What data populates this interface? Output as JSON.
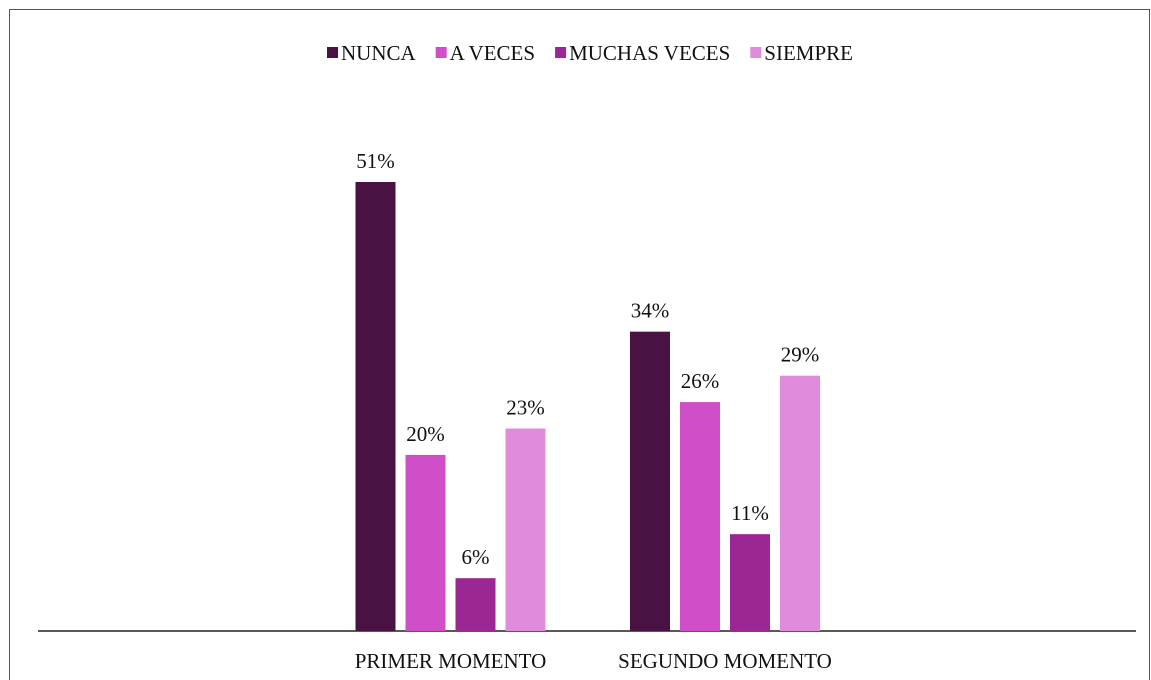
{
  "chart_data": {
    "type": "bar",
    "categories": [
      "PRIMER MOMENTO",
      "SEGUNDO MOMENTO"
    ],
    "series": [
      {
        "name": "NUNCA",
        "color": "#4a1242",
        "values": [
          51,
          34
        ],
        "value_labels": [
          "51%",
          "34%"
        ]
      },
      {
        "name": "A VECES",
        "color": "#d04fc8",
        "values": [
          20,
          26
        ],
        "value_labels": [
          "20%",
          "26%"
        ]
      },
      {
        "name": "MUCHAS VECES",
        "color": "#9b2794",
        "values": [
          6,
          11
        ],
        "value_labels": [
          "6%",
          "11%"
        ]
      },
      {
        "name": "SIEMPRE",
        "color": "#e08bdc",
        "values": [
          23,
          29
        ],
        "value_labels": [
          "23%",
          "29%"
        ]
      }
    ],
    "legend": "top"
  }
}
